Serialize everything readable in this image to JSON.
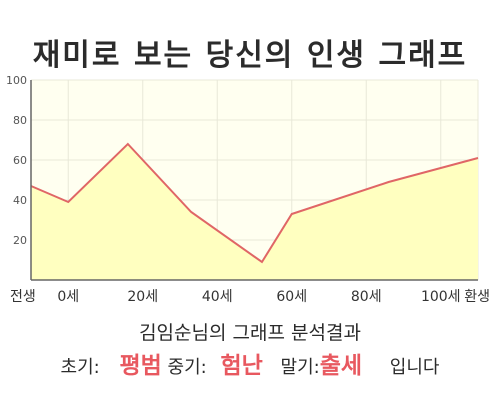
{
  "title": "재미로 보는 당신의 인생 그래프",
  "chart_data": {
    "type": "area",
    "x_tick_labels": [
      "전생",
      "0세",
      "20세",
      "40세",
      "60세",
      "80세",
      "100세",
      "환생"
    ],
    "x": [
      -10,
      0,
      20,
      40,
      60,
      80,
      100,
      110
    ],
    "y_tick_labels": [
      "20",
      "40",
      "60",
      "80",
      "100"
    ],
    "ylim": [
      0,
      100
    ],
    "grid": true,
    "points": [
      {
        "x": -10,
        "y": 47
      },
      {
        "x": 0,
        "y": 39
      },
      {
        "x": 16,
        "y": 68
      },
      {
        "x": 33,
        "y": 34
      },
      {
        "x": 52,
        "y": 9
      },
      {
        "x": 60,
        "y": 33
      },
      {
        "x": 86,
        "y": 49
      },
      {
        "x": 110,
        "y": 61
      }
    ],
    "colors": {
      "line": "#e06666",
      "fill": "#ffffc0",
      "plot_bg": "#fffff0",
      "grid": "#e8e8d8",
      "axis": "#666666"
    }
  },
  "analysis": {
    "title": "김임순님의 그래프 분석결과",
    "early_label": "초기:",
    "early_result": "평범",
    "middle_label": "중기:",
    "middle_result": "험난",
    "late_label": "말기:",
    "late_result": "출세",
    "ending": "입니다"
  }
}
